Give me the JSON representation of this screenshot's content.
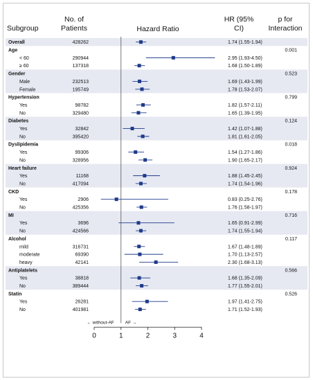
{
  "chart_data": {
    "type": "forest",
    "title": "Hazard Ratio",
    "columns": {
      "subgroup": "Subgroup",
      "patients": "No. of Patients",
      "hr": "HR (95% CI)",
      "p": "p for Interaction"
    },
    "x_ticks": [
      "0",
      "1",
      "2",
      "3",
      "4"
    ],
    "xlim": [
      0,
      4
    ],
    "reference_line": 1,
    "direction_labels": {
      "left": "← without-AF",
      "right": "AF →"
    },
    "rows": [
      {
        "label": "Overall",
        "kind": "overall",
        "n": "428262",
        "hr": 1.74,
        "lo": 1.55,
        "hi": 1.94,
        "hr_text": "1.74 (1.55-1.94)",
        "p": ""
      },
      {
        "label": "Age",
        "kind": "group",
        "p": "0.001"
      },
      {
        "label": "< 60",
        "kind": "sub",
        "n": "290944",
        "hr": 2.95,
        "lo": 1.93,
        "hi": 4.5,
        "hr_text": "2.95 (1.93-4.50)"
      },
      {
        "label": "≥ 60",
        "kind": "sub",
        "n": "137318",
        "hr": 1.68,
        "lo": 1.5,
        "hi": 1.89,
        "hr_text": "1.68 (1.50-1.89)"
      },
      {
        "label": "Gender",
        "kind": "group",
        "p": "0.523"
      },
      {
        "label": "Male",
        "kind": "sub",
        "n": "232513",
        "hr": 1.69,
        "lo": 1.43,
        "hi": 1.99,
        "hr_text": "1.69 (1.43-1.99)"
      },
      {
        "label": "Female",
        "kind": "sub",
        "n": "195749",
        "hr": 1.78,
        "lo": 1.53,
        "hi": 2.07,
        "hr_text": "1.78 (1.53-2.07)"
      },
      {
        "label": "Hypertension",
        "kind": "group",
        "p": "0.799"
      },
      {
        "label": "Yes",
        "kind": "sub",
        "n": "98782",
        "hr": 1.82,
        "lo": 1.57,
        "hi": 2.11,
        "hr_text": "1.82 (1.57-2.11)"
      },
      {
        "label": "No",
        "kind": "sub",
        "n": "329480",
        "hr": 1.65,
        "lo": 1.39,
        "hi": 1.95,
        "hr_text": "1.65 (1.39-1.95)"
      },
      {
        "label": "Diabetes",
        "kind": "group",
        "p": "0.124"
      },
      {
        "label": "Yes",
        "kind": "sub",
        "n": "32842",
        "hr": 1.42,
        "lo": 1.07,
        "hi": 1.88,
        "hr_text": "1.42 (1.07-1.88)"
      },
      {
        "label": "No",
        "kind": "sub",
        "n": "395420",
        "hr": 1.81,
        "lo": 1.61,
        "hi": 2.05,
        "hr_text": "1.81 (1.61-2.05)"
      },
      {
        "label": "Dyslipidemia",
        "kind": "group",
        "p": "0.018"
      },
      {
        "label": "Yes",
        "kind": "sub",
        "n": "99306",
        "hr": 1.54,
        "lo": 1.27,
        "hi": 1.86,
        "hr_text": "1.54 (1.27-1.86)"
      },
      {
        "label": "No",
        "kind": "sub",
        "n": "328956",
        "hr": 1.9,
        "lo": 1.65,
        "hi": 2.17,
        "hr_text": "1.90 (1.65-2.17)"
      },
      {
        "label": "Heart failure",
        "kind": "group",
        "p": "0.924"
      },
      {
        "label": "Yes",
        "kind": "sub",
        "n": "11168",
        "hr": 1.88,
        "lo": 1.45,
        "hi": 2.45,
        "hr_text": "1.88 (1.45-2.45)"
      },
      {
        "label": "No",
        "kind": "sub",
        "n": "417094",
        "hr": 1.74,
        "lo": 1.54,
        "hi": 1.96,
        "hr_text": "1.74 (1.54-1.96)"
      },
      {
        "label": "CKD",
        "kind": "group",
        "p": "0.178"
      },
      {
        "label": "Yes",
        "kind": "sub",
        "n": "2906",
        "hr": 0.83,
        "lo": 0.25,
        "hi": 2.76,
        "hr_text": "0.83 (0.25-2.76)"
      },
      {
        "label": "No",
        "kind": "sub",
        "n": "425356",
        "hr": 1.76,
        "lo": 1.58,
        "hi": 1.97,
        "hr_text": "1.76 (1.58-1.97)"
      },
      {
        "label": "MI",
        "kind": "group",
        "p": "0.716"
      },
      {
        "label": "Yes",
        "kind": "sub",
        "n": "3696",
        "hr": 1.65,
        "lo": 0.91,
        "hi": 2.99,
        "hr_text": "1.65 (0.91-2.99)"
      },
      {
        "label": "No",
        "kind": "sub",
        "n": "424566",
        "hr": 1.74,
        "lo": 1.55,
        "hi": 1.94,
        "hr_text": "1.74 (1.55-1.94)"
      },
      {
        "label": "Alcohol",
        "kind": "group",
        "p": "0.117"
      },
      {
        "label": "mild",
        "kind": "sub",
        "n": "316731",
        "hr": 1.67,
        "lo": 1.48,
        "hi": 1.89,
        "hr_text": "1.67 (1.48-1.89)"
      },
      {
        "label": "moderate",
        "kind": "sub",
        "n": "69390",
        "hr": 1.7,
        "lo": 1.13,
        "hi": 2.57,
        "hr_text": "1.70 (1.13-2.57)"
      },
      {
        "label": "heavy",
        "kind": "sub",
        "n": "42141",
        "hr": 2.3,
        "lo": 1.68,
        "hi": 3.13,
        "hr_text": "2.30 (1.68-3.13)"
      },
      {
        "label": "Antiplatelets",
        "kind": "group",
        "p": "0.566"
      },
      {
        "label": "Yes",
        "kind": "sub",
        "n": "38818",
        "hr": 1.68,
        "lo": 1.35,
        "hi": 2.09,
        "hr_text": "1.68 (1.35-2.09)"
      },
      {
        "label": "No",
        "kind": "sub",
        "n": "389444",
        "hr": 1.77,
        "lo": 1.55,
        "hi": 2.01,
        "hr_text": "1.77 (1.55-2.01)"
      },
      {
        "label": "Statin",
        "kind": "group",
        "p": "0.526"
      },
      {
        "label": "Yes",
        "kind": "sub",
        "n": "26281",
        "hr": 1.97,
        "lo": 1.41,
        "hi": 2.75,
        "hr_text": "1.97 (1.41-2.75)"
      },
      {
        "label": "No",
        "kind": "sub",
        "n": "401981",
        "hr": 1.71,
        "lo": 1.52,
        "hi": 1.93,
        "hr_text": "1.71 (1.52-1.93)"
      }
    ],
    "colors": {
      "marker": "#1f3b8a",
      "band": "#e6e9f2",
      "axis": "#222222",
      "reference": "#555555"
    }
  }
}
